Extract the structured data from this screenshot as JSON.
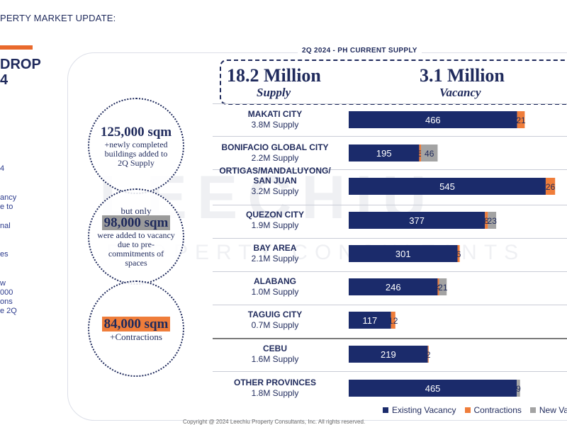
{
  "page": {
    "top_title": "PERTY MARKET UPDATE:",
    "side_heading": [
      "DROP",
      "4"
    ],
    "side_notes": [
      "4",
      "ancy",
      "e to",
      "nal",
      "es",
      "w",
      "000",
      "ons",
      "e 2Q"
    ]
  },
  "panel": {
    "title": "2Q 2024 - PH CURRENT SUPPLY",
    "supply_value": "18.2 Million",
    "supply_label": "Supply",
    "vacancy_value": "3.1 Million",
    "vacancy_label": "Vacancy"
  },
  "callouts": [
    {
      "big": "125,000 sqm",
      "text": [
        "+newly completed",
        "buildings added to",
        "2Q Supply"
      ]
    },
    {
      "pre": "but only",
      "big": "98,000 sqm",
      "text": [
        "were added to vacancy",
        "due to pre-",
        "commitments of",
        "spaces"
      ]
    },
    {
      "big": "84,000 sqm",
      "text": [
        "+Contractions"
      ]
    }
  ],
  "watermark": {
    "line1": "LEECHIU",
    "line2": "PROPERTY CONSULTANTS"
  },
  "chart_data": {
    "type": "bar",
    "orientation": "horizontal",
    "stacked": true,
    "title": "2Q 2024 - PH CURRENT SUPPLY",
    "categories": [
      "MAKATI CITY",
      "BONIFACIO GLOBAL CITY",
      "ORTIGAS/MANDALUYONG/ SAN JUAN",
      "QUEZON CITY",
      "BAY AREA",
      "ALABANG",
      "TAGUIG CITY",
      "CEBU",
      "OTHER PROVINCES"
    ],
    "category_lines": [
      [
        "MAKATI CITY"
      ],
      [
        "BONIFACIO GLOBAL CITY"
      ],
      [
        "ORTIGAS/MANDALUYONG/",
        "SAN JUAN"
      ],
      [
        "QUEZON CITY"
      ],
      [
        "BAY AREA"
      ],
      [
        "ALABANG"
      ],
      [
        "TAGUIG CITY"
      ],
      [
        "CEBU"
      ],
      [
        "OTHER PROVINCES"
      ]
    ],
    "supply_labels": [
      "3.8M Supply",
      "2.2M Supply",
      "3.2M Supply",
      "1.9M Supply",
      "2.1M Supply",
      "1.0M Supply",
      "0.7M Supply",
      "1.6M Supply",
      "1.8M Supply"
    ],
    "series": [
      {
        "name": "Existing Vacancy",
        "color": "#1b2b6b",
        "values": [
          466,
          195,
          545,
          377,
          301,
          246,
          117,
          219,
          465
        ]
      },
      {
        "name": "Contractions",
        "color": "#ef7d3a",
        "values": [
          21,
          5,
          26,
          8,
          6,
          4,
          12,
          2,
          null
        ]
      },
      {
        "name": "New Vacancy",
        "color": "#a3a3a3",
        "values": [
          null,
          46,
          null,
          23,
          null,
          21,
          null,
          null,
          9
        ]
      }
    ],
    "xlim": [
      0,
      580
    ]
  },
  "legend": {
    "items": [
      {
        "label": "Existing Vacancy",
        "color": "#1b2b6b"
      },
      {
        "label": "Contractions",
        "color": "#ef7d3a"
      },
      {
        "label": "New Vacancy",
        "color": "#a3a3a3"
      }
    ]
  },
  "footer": "Copyright @ 2024 Leechiu Property Consultants, Inc. All rights reserved."
}
